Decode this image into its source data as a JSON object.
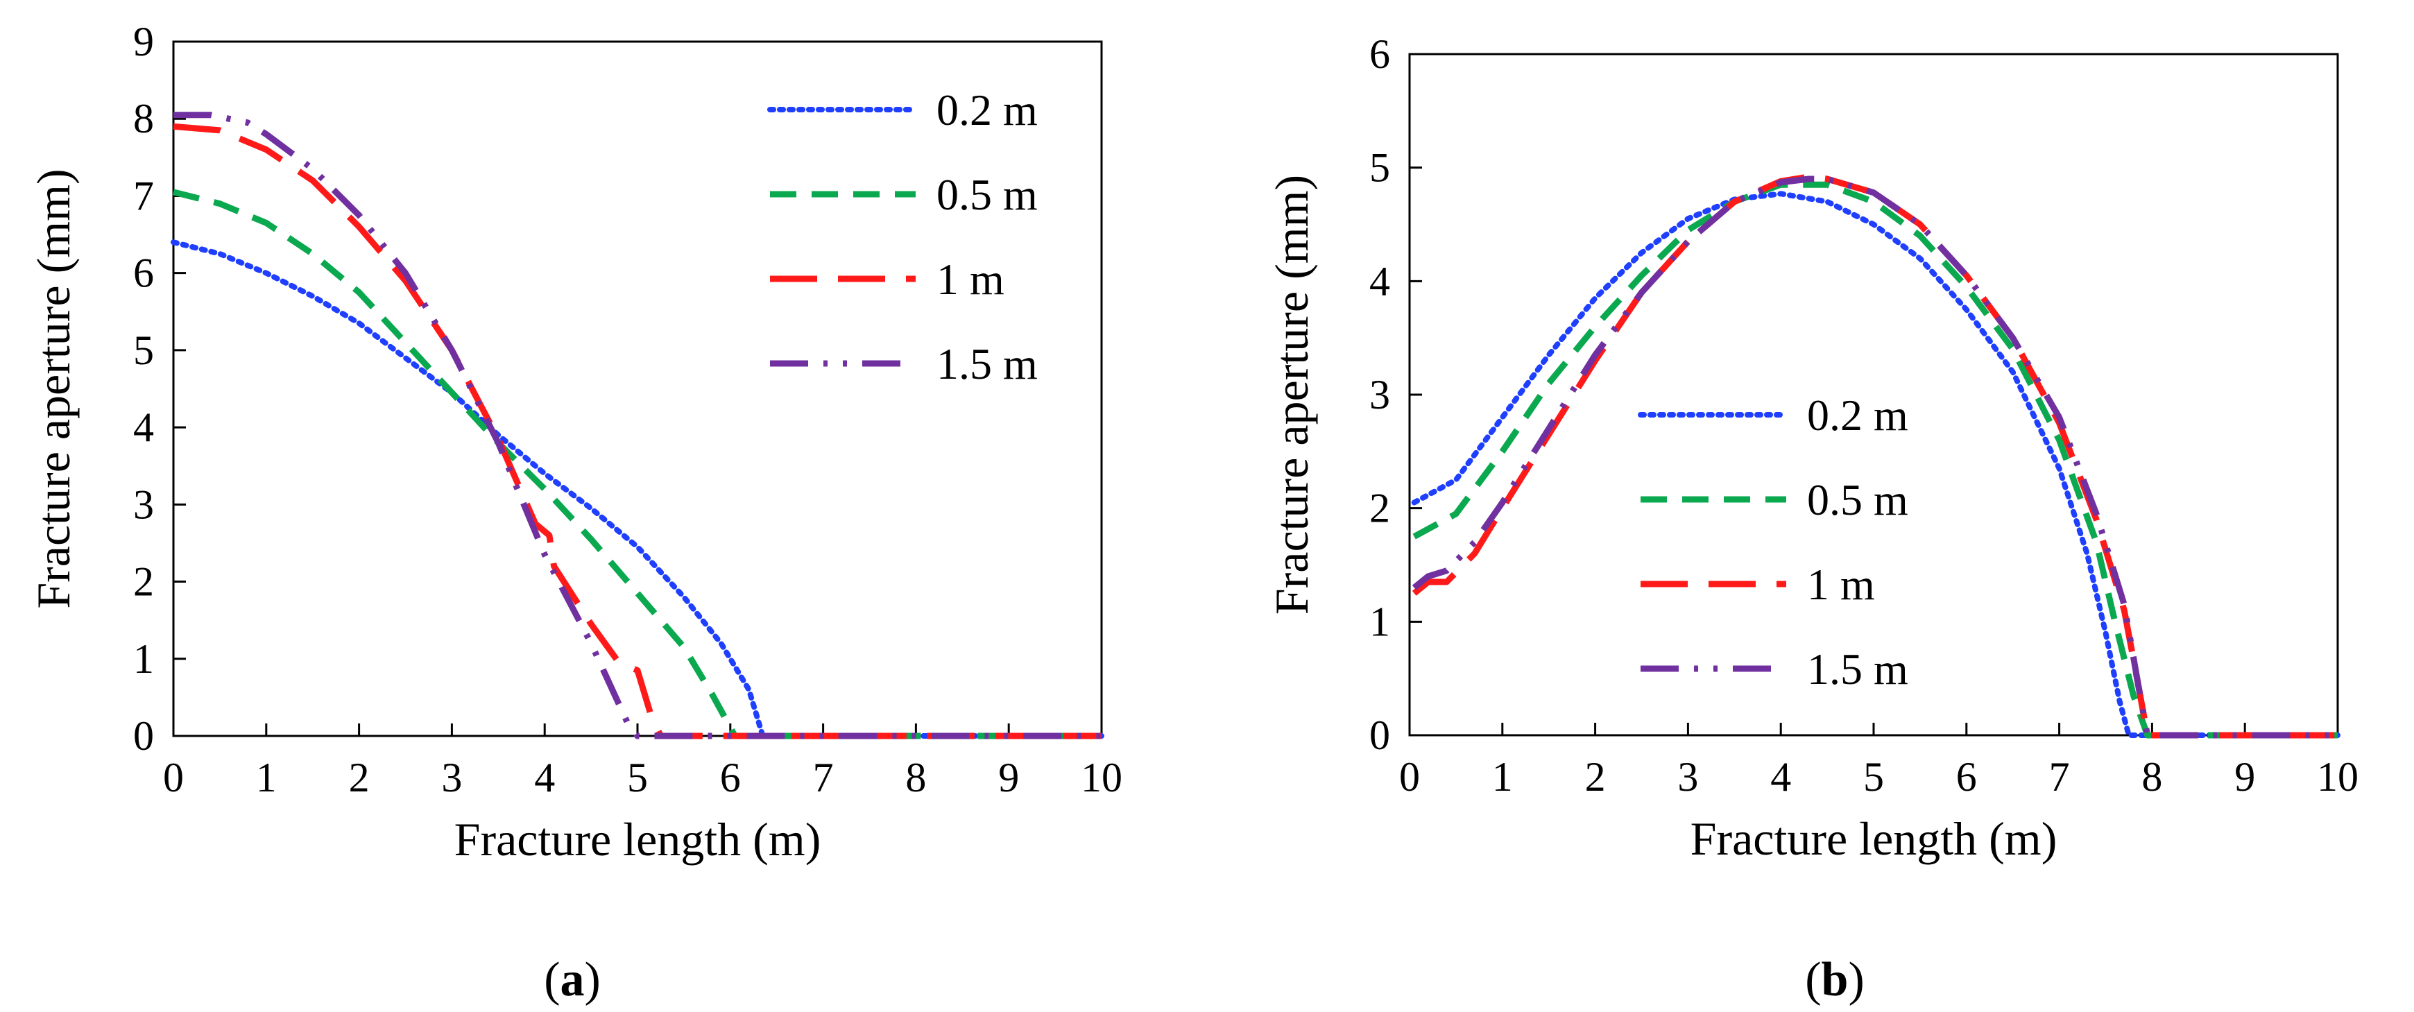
{
  "chart_data": [
    {
      "type": "line",
      "panel_label": "a",
      "xlabel": "Fracture length  (m)",
      "ylabel": "Fracture aperture (mm)",
      "xlim": [
        0,
        10
      ],
      "ylim": [
        0,
        9
      ],
      "xticks": [
        0,
        1,
        2,
        3,
        4,
        5,
        6,
        7,
        8,
        9,
        10
      ],
      "yticks": [
        0,
        1,
        2,
        3,
        4,
        5,
        6,
        7,
        8,
        9
      ],
      "legend_position": "top-right",
      "series": [
        {
          "name": "0.2 m",
          "color": "#1f3fff",
          "dash": "dotted",
          "x": [
            0.0,
            0.5,
            1.0,
            1.5,
            2.0,
            2.5,
            3.0,
            3.5,
            4.0,
            4.5,
            5.0,
            5.5,
            5.9,
            6.2,
            6.35,
            6.5,
            7,
            8,
            9,
            10
          ],
          "y": [
            6.4,
            6.25,
            6.0,
            5.7,
            5.35,
            4.9,
            4.45,
            3.9,
            3.4,
            2.95,
            2.45,
            1.8,
            1.2,
            0.6,
            0.0,
            0.0,
            0.0,
            0.0,
            0.0,
            0.0
          ]
        },
        {
          "name": "0.5 m",
          "color": "#0aa84f",
          "dash": "dashed",
          "x": [
            0.0,
            0.5,
            1.0,
            1.5,
            2.0,
            2.5,
            3.0,
            3.5,
            4.0,
            4.5,
            5.0,
            5.5,
            5.8,
            6.05,
            6.3,
            7,
            8,
            9,
            10
          ],
          "y": [
            7.05,
            6.9,
            6.65,
            6.25,
            5.75,
            5.1,
            4.45,
            3.8,
            3.2,
            2.55,
            1.85,
            1.15,
            0.55,
            0.0,
            0.0,
            0.0,
            0.0,
            0.0,
            0.0
          ]
        },
        {
          "name": "1 m",
          "color": "#ff1a1a",
          "dash": "long-dashed",
          "x": [
            0.0,
            0.5,
            1.0,
            1.5,
            2.0,
            2.5,
            3.0,
            3.5,
            3.9,
            4.05,
            4.1,
            4.5,
            4.8,
            5.0,
            5.15,
            5.25,
            6,
            7,
            8,
            9,
            10
          ],
          "y": [
            7.9,
            7.85,
            7.6,
            7.2,
            6.6,
            5.9,
            5.0,
            3.85,
            2.75,
            2.6,
            2.2,
            1.45,
            0.95,
            0.85,
            0.25,
            0.0,
            0.0,
            0.0,
            0.0,
            0.0,
            0.0
          ]
        },
        {
          "name": "1.5 m",
          "color": "#7030a0",
          "dash": "dash-dot-dot",
          "x": [
            0.0,
            0.4,
            0.8,
            1.0,
            1.5,
            2.0,
            2.5,
            3.0,
            3.5,
            4.0,
            4.5,
            4.9,
            5.0,
            5.5,
            6,
            7,
            8,
            9,
            10
          ],
          "y": [
            8.05,
            8.05,
            7.95,
            7.8,
            7.35,
            6.75,
            6.0,
            5.0,
            3.8,
            2.35,
            1.2,
            0.15,
            0.0,
            0.0,
            0.0,
            0.0,
            0.0,
            0.0,
            0.0
          ]
        }
      ]
    },
    {
      "type": "line",
      "panel_label": "b",
      "xlabel": "Fracture length  (m)",
      "ylabel": "Fracture aperture (mm)",
      "xlim": [
        0,
        10
      ],
      "ylim": [
        0,
        6
      ],
      "xticks": [
        0,
        1,
        2,
        3,
        4,
        5,
        6,
        7,
        8,
        9,
        10
      ],
      "yticks": [
        0,
        1,
        2,
        3,
        4,
        5,
        6
      ],
      "legend_position": "center-left",
      "series": [
        {
          "name": "0.2 m",
          "color": "#1f3fff",
          "dash": "dotted",
          "x": [
            0.05,
            0.5,
            1.0,
            1.5,
            2.0,
            2.5,
            3.0,
            3.5,
            4.0,
            4.5,
            5.0,
            5.5,
            6.0,
            6.5,
            7.0,
            7.3,
            7.5,
            7.65,
            7.75,
            8,
            9,
            10
          ],
          "y": [
            2.05,
            2.25,
            2.8,
            3.35,
            3.85,
            4.25,
            4.55,
            4.72,
            4.77,
            4.7,
            4.5,
            4.2,
            3.75,
            3.2,
            2.35,
            1.6,
            0.9,
            0.3,
            0.0,
            0.0,
            0.0,
            0.0
          ]
        },
        {
          "name": "0.5 m",
          "color": "#0aa84f",
          "dash": "dashed",
          "x": [
            0.05,
            0.5,
            1.0,
            1.5,
            2.0,
            2.5,
            3.0,
            3.5,
            4.0,
            4.5,
            5.0,
            5.5,
            6.0,
            6.5,
            7.0,
            7.4,
            7.6,
            7.8,
            7.95,
            8.2,
            9,
            10
          ],
          "y": [
            1.75,
            1.95,
            2.5,
            3.1,
            3.6,
            4.05,
            4.45,
            4.7,
            4.85,
            4.85,
            4.7,
            4.4,
            3.95,
            3.4,
            2.6,
            1.7,
            1.0,
            0.35,
            0.0,
            0.0,
            0.0,
            0.0
          ]
        },
        {
          "name": "1 m",
          "color": "#ff1a1a",
          "dash": "long-dashed",
          "x": [
            0.05,
            0.2,
            0.4,
            0.7,
            1.0,
            1.5,
            2.0,
            2.5,
            3.0,
            3.5,
            4.0,
            4.3,
            4.5,
            5.0,
            5.5,
            6.0,
            6.5,
            7.0,
            7.4,
            7.7,
            7.85,
            7.95,
            8.1,
            9,
            10
          ],
          "y": [
            1.25,
            1.35,
            1.35,
            1.6,
            2.0,
            2.65,
            3.3,
            3.9,
            4.35,
            4.7,
            4.88,
            4.92,
            4.9,
            4.78,
            4.5,
            4.05,
            3.5,
            2.75,
            1.9,
            1.1,
            0.45,
            0.0,
            0.0,
            0.0,
            0.0
          ]
        },
        {
          "name": "1.5 m",
          "color": "#7030a0",
          "dash": "dash-dot-dot",
          "x": [
            0.05,
            0.2,
            0.4,
            0.7,
            1.0,
            1.5,
            2.0,
            2.5,
            3.0,
            3.5,
            4.0,
            4.3,
            4.5,
            5.0,
            5.5,
            6.0,
            6.5,
            7.0,
            7.4,
            7.7,
            7.85,
            7.95,
            8.1,
            9,
            10
          ],
          "y": [
            1.3,
            1.4,
            1.45,
            1.7,
            2.05,
            2.7,
            3.35,
            3.9,
            4.35,
            4.7,
            4.87,
            4.9,
            4.9,
            4.78,
            4.5,
            4.05,
            3.5,
            2.8,
            1.95,
            1.15,
            0.45,
            0.0,
            0.0,
            0.0,
            0.0
          ]
        }
      ]
    }
  ]
}
